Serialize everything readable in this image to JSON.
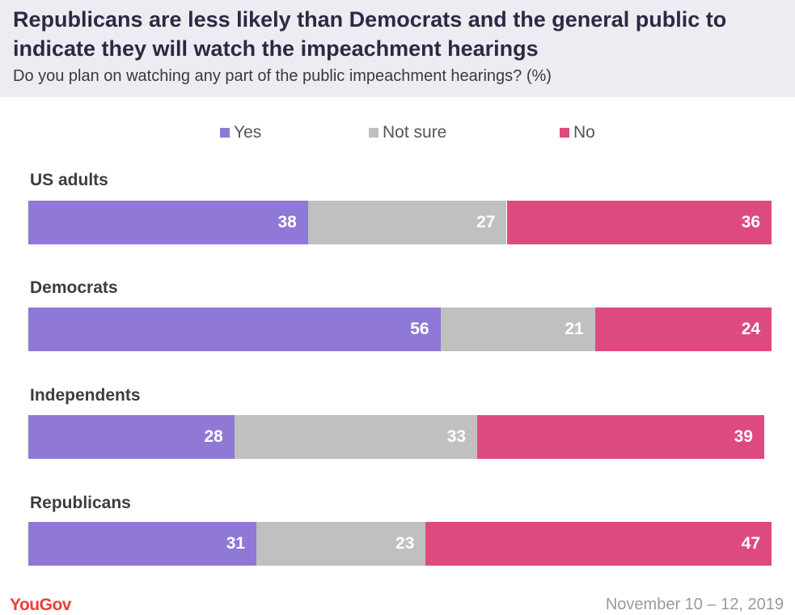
{
  "chart_data": {
    "type": "bar",
    "orientation": "horizontal",
    "stacked": true,
    "title": "Republicans are less likely than Democrats and the general public to indicate they will watch the impeachment hearings",
    "subtitle": "Do you plan on watching any part of the public impeachment hearings? (%)",
    "legend_position": "top",
    "categories": [
      "US adults",
      "Democrats",
      "Independents",
      "Republicans"
    ],
    "series": [
      {
        "name": "Yes",
        "color": "#8f78d6",
        "values": [
          38,
          56,
          28,
          31
        ]
      },
      {
        "name": "Not sure",
        "color": "#c0c0c0",
        "values": [
          27,
          21,
          33,
          23
        ]
      },
      {
        "name": "No",
        "color": "#dd4a80",
        "values": [
          36,
          24,
          39,
          47
        ]
      }
    ]
  },
  "footer": {
    "brand": "YouGov",
    "date": "November 10 – 12, 2019"
  }
}
